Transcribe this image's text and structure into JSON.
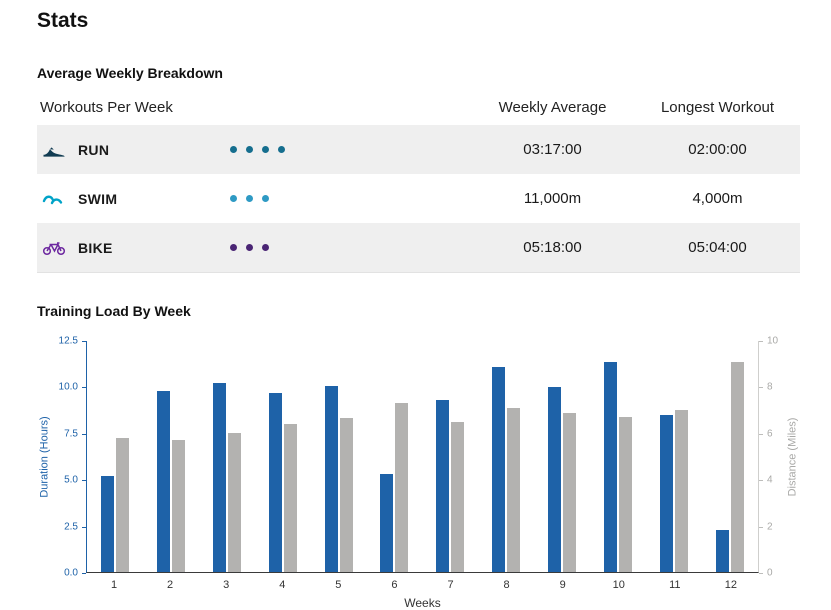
{
  "page": {
    "title": "Stats"
  },
  "breakdown": {
    "heading": "Average Weekly Breakdown",
    "table": {
      "col1_header": "Workouts Per Week",
      "col2_header": "Weekly Average",
      "col3_header": "Longest Workout",
      "rows": [
        {
          "sport": "RUN",
          "dots": 4,
          "dot_color": "#156e8e",
          "icon_color": "#123c52",
          "weekly_average": "03:17:00",
          "longest_workout": "02:00:00"
        },
        {
          "sport": "SWIM",
          "dots": 3,
          "dot_color": "#2e9ac4",
          "icon_color": "#00a3c8",
          "weekly_average": "11,000m",
          "longest_workout": "4,000m"
        },
        {
          "sport": "BIKE",
          "dots": 3,
          "dot_color": "#4a2574",
          "icon_color": "#6d28a0",
          "weekly_average": "05:18:00",
          "longest_workout": "05:04:00"
        }
      ]
    }
  },
  "chart_data": {
    "type": "bar",
    "title": "Training Load By Week",
    "categories": [
      "1",
      "2",
      "3",
      "4",
      "5",
      "6",
      "7",
      "8",
      "9",
      "10",
      "11",
      "12"
    ],
    "series": [
      {
        "name": "Duration (Hours)",
        "axis": "left",
        "color": "#1e62a8",
        "values": [
          5.2,
          9.8,
          10.25,
          9.7,
          10.05,
          5.3,
          9.3,
          11.1,
          10.0,
          11.35,
          8.5,
          2.3
        ]
      },
      {
        "name": "Distance (Miles)",
        "axis": "right",
        "color": "#b3b2b0",
        "values": [
          5.8,
          5.7,
          6.0,
          6.4,
          6.65,
          7.3,
          6.5,
          7.1,
          6.9,
          6.7,
          7.0,
          9.1
        ]
      }
    ],
    "left_axis": {
      "label": "Duration (Hours)",
      "min": 0,
      "max": 12.5,
      "ticks": [
        "12.5",
        "10.0",
        "7.5",
        "5.0",
        "2.5",
        "0.0"
      ]
    },
    "right_axis": {
      "label": "Distance (Miles)",
      "min": 0,
      "max": 10,
      "ticks": [
        "10",
        "8",
        "6",
        "4",
        "2",
        "0"
      ]
    },
    "xlabel": "Weeks",
    "grid": false,
    "legend": "none"
  }
}
